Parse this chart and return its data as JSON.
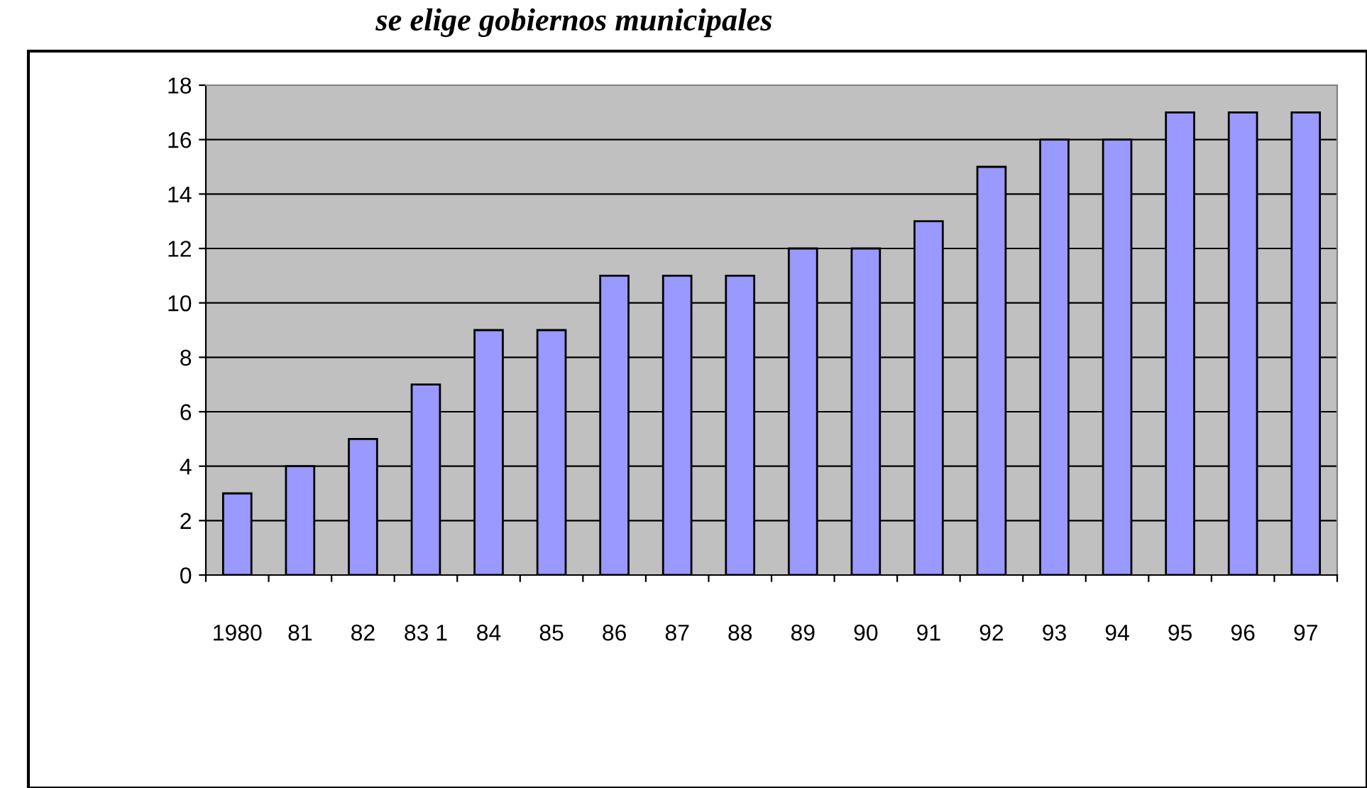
{
  "chart_data": {
    "type": "bar",
    "title": "se elige gobiernos municipales",
    "categories": [
      "1980",
      "81",
      "82",
      "83 1",
      "84",
      "85",
      "86",
      "87",
      "88",
      "89",
      "90",
      "91",
      "92",
      "93",
      "94",
      "95",
      "96",
      "97"
    ],
    "values": [
      3,
      4,
      5,
      7,
      9,
      9,
      11,
      11,
      11,
      12,
      12,
      13,
      15,
      16,
      16,
      17,
      17,
      17
    ],
    "color": "#9999ff",
    "ylim": [
      0,
      18
    ],
    "yticks": [
      0,
      2,
      4,
      6,
      8,
      10,
      12,
      14,
      16,
      18
    ],
    "grid": "y"
  }
}
